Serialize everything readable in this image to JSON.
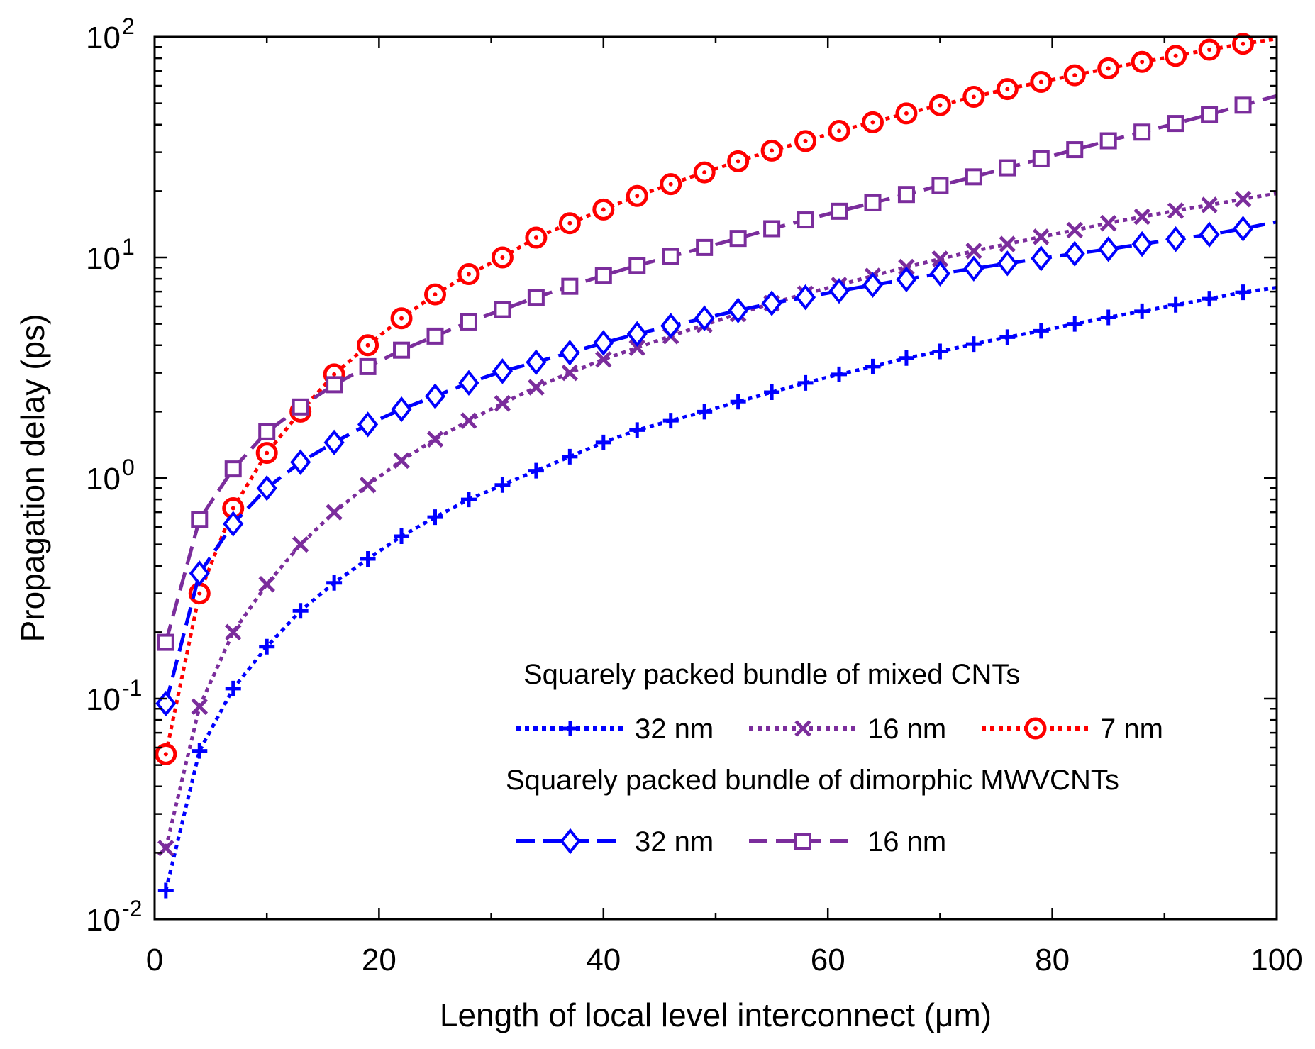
{
  "chart_data": {
    "type": "line",
    "title": "",
    "xlabel": "Length of local level interconnect (μm)",
    "ylabel": "Propagation delay (ps)",
    "xscale": "linear",
    "yscale": "log",
    "xlim": [
      0,
      100
    ],
    "ylim": [
      0.01,
      100
    ],
    "xticks": [
      0,
      20,
      40,
      60,
      80,
      100
    ],
    "xtick_labels": [
      "0",
      "20",
      "40",
      "60",
      "80",
      "100"
    ],
    "yticks": [
      0.01,
      0.1,
      1,
      10,
      100
    ],
    "ytick_labels": [
      {
        "base": "10",
        "exp": "-2"
      },
      {
        "base": "10",
        "exp": "-1"
      },
      {
        "base": "10",
        "exp": "0"
      },
      {
        "base": "10",
        "exp": "1"
      },
      {
        "base": "10",
        "exp": "2"
      }
    ],
    "grid": false,
    "legend_groups": [
      {
        "title": "Squarely packed bundle of mixed CNTs",
        "series": [
          0,
          1,
          2
        ]
      },
      {
        "title": "Squarely packed bundle of dimorphic MWVCNTs",
        "series": [
          3,
          4
        ]
      }
    ],
    "series": [
      {
        "name": "32 nm",
        "group": "mixed",
        "color": "#0000ff",
        "marker": "plus",
        "line": "dotted",
        "x": [
          1,
          4,
          7,
          10,
          13,
          16,
          19,
          22,
          25,
          28,
          31,
          34,
          37,
          40,
          43,
          46,
          49,
          52,
          55,
          58,
          61,
          64,
          67,
          70,
          73,
          76,
          79,
          82,
          85,
          88,
          91,
          94,
          97,
          100
        ],
        "y": [
          0.0135,
          0.058,
          0.111,
          0.172,
          0.25,
          0.335,
          0.43,
          0.545,
          0.665,
          0.8,
          0.93,
          1.08,
          1.25,
          1.45,
          1.65,
          1.82,
          2.0,
          2.22,
          2.45,
          2.7,
          2.95,
          3.2,
          3.5,
          3.75,
          4.05,
          4.35,
          4.65,
          5.0,
          5.35,
          5.7,
          6.1,
          6.5,
          6.95,
          7.3
        ]
      },
      {
        "name": "16 nm",
        "group": "mixed",
        "color": "#7b2d9c",
        "marker": "x",
        "line": "dotted",
        "x": [
          1,
          4,
          7,
          10,
          13,
          16,
          19,
          22,
          25,
          28,
          31,
          34,
          37,
          40,
          43,
          46,
          49,
          52,
          55,
          58,
          61,
          64,
          67,
          70,
          73,
          76,
          79,
          82,
          85,
          88,
          91,
          94,
          97,
          100
        ],
        "y": [
          0.021,
          0.092,
          0.2,
          0.33,
          0.5,
          0.7,
          0.93,
          1.2,
          1.5,
          1.82,
          2.18,
          2.58,
          3.0,
          3.45,
          3.9,
          4.4,
          4.95,
          5.55,
          6.2,
          6.85,
          7.5,
          8.25,
          9.05,
          9.85,
          10.7,
          11.5,
          12.4,
          13.3,
          14.3,
          15.3,
          16.3,
          17.3,
          18.4,
          19.5
        ]
      },
      {
        "name": "7 nm",
        "group": "mixed",
        "color": "#ff0000",
        "marker": "circle",
        "line": "dotted",
        "x": [
          1,
          4,
          7,
          10,
          13,
          16,
          19,
          22,
          25,
          28,
          31,
          34,
          37,
          40,
          43,
          46,
          49,
          52,
          55,
          58,
          61,
          64,
          67,
          70,
          73,
          76,
          79,
          82,
          85,
          88,
          91,
          94,
          97,
          100
        ],
        "y": [
          0.056,
          0.3,
          0.73,
          1.3,
          2.0,
          2.95,
          4.0,
          5.3,
          6.8,
          8.4,
          10.0,
          12.3,
          14.3,
          16.5,
          19.0,
          21.5,
          24.3,
          27.3,
          30.5,
          33.7,
          37.5,
          41.0,
          45.0,
          49.0,
          53.5,
          58.0,
          62.5,
          67.0,
          72.0,
          77.0,
          82.0,
          87.5,
          93.0,
          98.0
        ]
      },
      {
        "name": "32 nm",
        "group": "dimorphic",
        "color": "#0000ff",
        "marker": "diamond",
        "line": "dashed",
        "x": [
          1,
          4,
          7,
          10,
          13,
          16,
          19,
          22,
          25,
          28,
          31,
          34,
          37,
          40,
          43,
          46,
          49,
          52,
          55,
          58,
          61,
          64,
          67,
          70,
          73,
          76,
          79,
          82,
          85,
          88,
          91,
          94,
          97,
          100
        ],
        "y": [
          0.095,
          0.37,
          0.62,
          0.9,
          1.18,
          1.45,
          1.75,
          2.05,
          2.35,
          2.7,
          3.05,
          3.35,
          3.7,
          4.1,
          4.5,
          4.9,
          5.3,
          5.75,
          6.2,
          6.6,
          7.05,
          7.5,
          7.95,
          8.45,
          8.9,
          9.4,
          9.9,
          10.4,
          10.9,
          11.5,
          12.1,
          12.7,
          13.5,
          14.5
        ]
      },
      {
        "name": "16 nm",
        "group": "dimorphic",
        "color": "#7b2d9c",
        "marker": "square",
        "line": "dashed",
        "x": [
          1,
          4,
          7,
          10,
          13,
          16,
          19,
          22,
          25,
          28,
          31,
          34,
          37,
          40,
          43,
          46,
          49,
          52,
          55,
          58,
          61,
          64,
          67,
          70,
          73,
          76,
          79,
          82,
          85,
          88,
          91,
          94,
          97,
          100
        ],
        "y": [
          0.18,
          0.65,
          1.1,
          1.62,
          2.1,
          2.65,
          3.2,
          3.8,
          4.4,
          5.1,
          5.8,
          6.6,
          7.4,
          8.3,
          9.2,
          10.1,
          11.1,
          12.2,
          13.5,
          14.8,
          16.2,
          17.7,
          19.3,
          21.2,
          23.2,
          25.5,
          28.0,
          30.8,
          33.8,
          37.0,
          40.5,
          44.5,
          49.0,
          54.0
        ]
      }
    ]
  }
}
